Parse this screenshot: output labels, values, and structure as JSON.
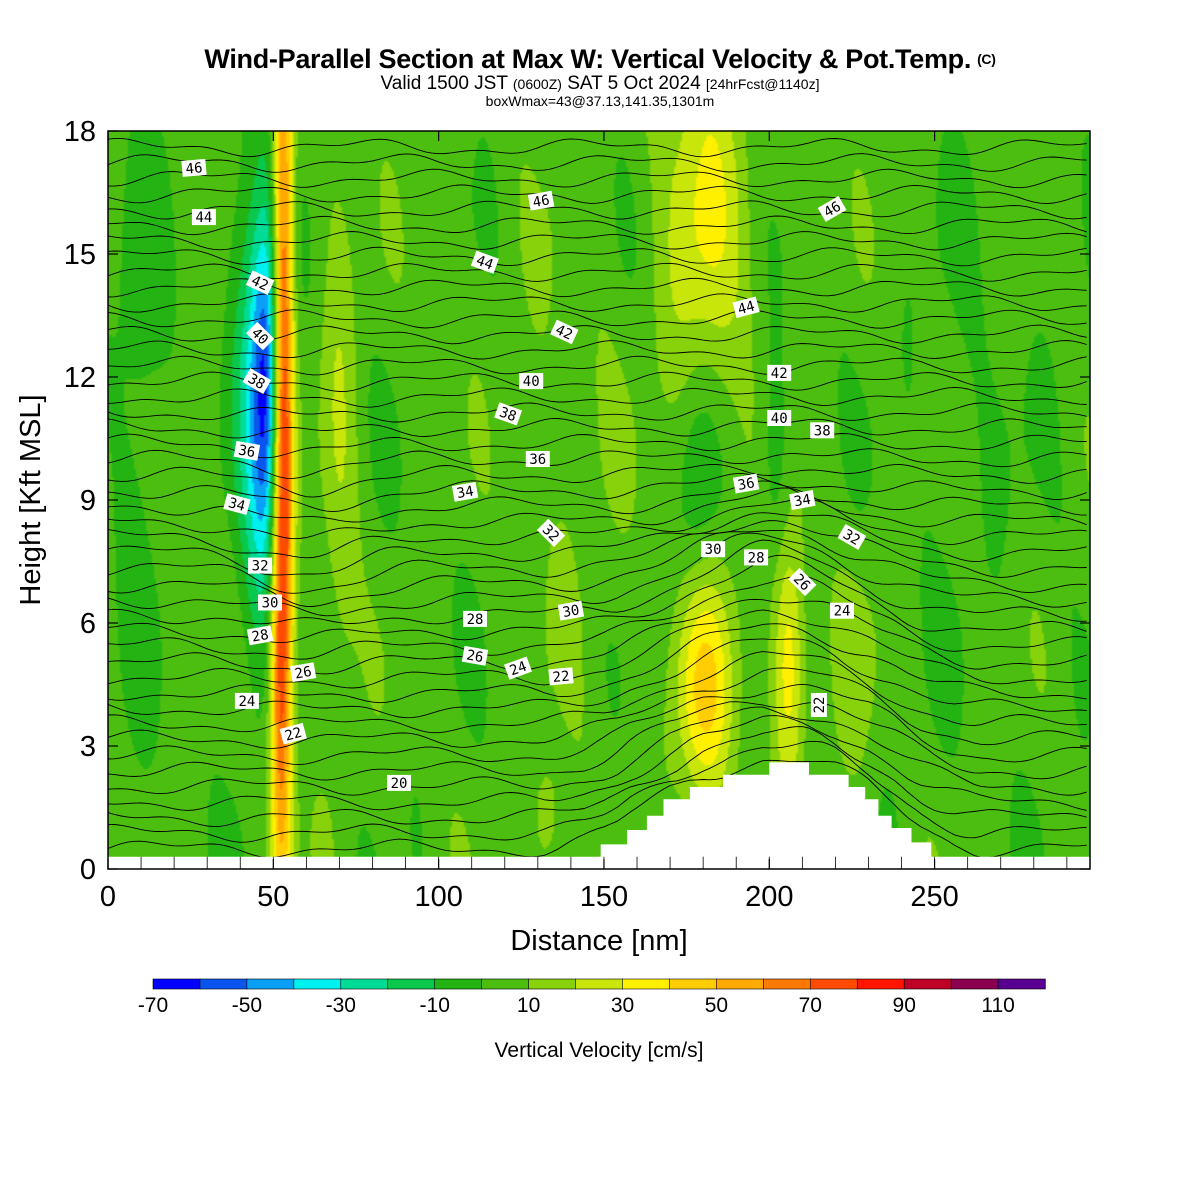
{
  "header": {
    "title": "Wind-Parallel Section at Max W: Vertical Velocity & Pot.Temp.",
    "title_mark": "(C)",
    "valid_prefix": "Valid 1500 JST",
    "valid_utc": "(0600Z)",
    "valid_date": "SAT 5 Oct 2024",
    "forecast": "[24hrFcst@1140z]",
    "box_info": "boxWmax=43@37.13,141.35,1301m"
  },
  "chart_data": {
    "type": "heatmap",
    "title": "Wind-Parallel Section at Max W: Vertical Velocity & Pot.Temp.",
    "xlabel": "Distance [nm]",
    "ylabel": "Height [Kft MSL]",
    "xlim": [
      0,
      297
    ],
    "ylim": [
      0,
      18
    ],
    "x_ticks": [
      0,
      50,
      100,
      150,
      200,
      250
    ],
    "y_ticks": [
      0,
      3,
      6,
      9,
      12,
      15,
      18
    ],
    "colorbar": {
      "title": "Vertical Velocity [cm/s]",
      "tick_labels": [
        "-70",
        "-50",
        "-30",
        "-10",
        "10",
        "30",
        "50",
        "70",
        "90",
        "110"
      ],
      "levels": [
        -70,
        -60,
        -50,
        -40,
        -30,
        -20,
        -10,
        0,
        10,
        20,
        30,
        40,
        50,
        60,
        70,
        80,
        90,
        100,
        110
      ],
      "colors": [
        "#0000ff",
        "#0a55ee",
        "#0aa0f5",
        "#00f0f0",
        "#00dc96",
        "#0ac84b",
        "#23b414",
        "#4bbe0f",
        "#87d20a",
        "#c8e60a",
        "#fff000",
        "#ffcd00",
        "#ffaa00",
        "#ff7800",
        "#ff4b00",
        "#ff1400",
        "#be0028",
        "#8c0050",
        "#5a0091"
      ]
    },
    "velocity_features": [
      {
        "x": 53,
        "y": 11,
        "sx": 2.2,
        "sy": 8.5,
        "value": 80
      },
      {
        "x": 51,
        "y": 4.2,
        "sx": 2,
        "sy": 3,
        "value": 25
      },
      {
        "x": 48,
        "y": 11.8,
        "sx": 3.2,
        "sy": 3,
        "value": -52
      },
      {
        "x": 44,
        "y": 11.5,
        "sx": 4.5,
        "sy": 4.5,
        "value": -25
      },
      {
        "x": 70,
        "y": 10.5,
        "sx": 4,
        "sy": 5,
        "value": 14
      },
      {
        "x": 180,
        "y": 16,
        "sx": 9,
        "sy": 4,
        "value": 26
      },
      {
        "x": 180,
        "y": 4.5,
        "sx": 6.5,
        "sy": 2.2,
        "value": 38
      },
      {
        "x": 206,
        "y": 5.2,
        "sx": 3.5,
        "sy": 2.3,
        "value": 34
      },
      {
        "x": 178,
        "y": 8.8,
        "sx": 5,
        "sy": 2.5,
        "value": -18
      },
      {
        "x": 202,
        "y": 9.8,
        "sx": 3,
        "sy": 2,
        "value": -12
      },
      {
        "x": 226,
        "y": 5,
        "sx": 5,
        "sy": 2,
        "value": 10
      },
      {
        "x": 133,
        "y": 1.2,
        "sx": 3,
        "sy": 1,
        "value": 14
      },
      {
        "x": 10,
        "y": 12,
        "sx": 5,
        "sy": 5,
        "value": -10
      },
      {
        "x": 260,
        "y": 11,
        "sx": 15,
        "sy": 5,
        "value": -3
      },
      {
        "x": 140,
        "y": 10,
        "sx": 12,
        "sy": 6,
        "value": 5
      }
    ],
    "theta_levels": [
      20,
      22,
      24,
      26,
      28,
      30,
      32,
      34,
      36,
      38,
      40,
      42,
      44,
      46
    ],
    "contour_labels": [
      {
        "text": "46",
        "x": 26,
        "y": 17.1,
        "angle": -5
      },
      {
        "text": "44",
        "x": 29,
        "y": 15.9,
        "angle": 0
      },
      {
        "text": "42",
        "x": 46,
        "y": 14.3,
        "angle": 25
      },
      {
        "text": "40",
        "x": 46,
        "y": 13.0,
        "angle": 45
      },
      {
        "text": "38",
        "x": 45,
        "y": 11.9,
        "angle": 30
      },
      {
        "text": "36",
        "x": 42,
        "y": 10.2,
        "angle": 10
      },
      {
        "text": "34",
        "x": 39,
        "y": 8.9,
        "angle": 15
      },
      {
        "text": "32",
        "x": 46,
        "y": 7.4,
        "angle": 0
      },
      {
        "text": "30",
        "x": 49,
        "y": 6.5,
        "angle": 0
      },
      {
        "text": "28",
        "x": 46,
        "y": 5.7,
        "angle": -10
      },
      {
        "text": "26",
        "x": 59,
        "y": 4.8,
        "angle": -10
      },
      {
        "text": "24",
        "x": 42,
        "y": 4.1,
        "angle": 0
      },
      {
        "text": "22",
        "x": 56,
        "y": 3.3,
        "angle": -15
      },
      {
        "text": "20",
        "x": 88,
        "y": 2.1,
        "angle": 0
      },
      {
        "text": "46",
        "x": 131,
        "y": 16.3,
        "angle": -10
      },
      {
        "text": "44",
        "x": 114,
        "y": 14.8,
        "angle": 20
      },
      {
        "text": "42",
        "x": 138,
        "y": 13.1,
        "angle": 25
      },
      {
        "text": "40",
        "x": 128,
        "y": 11.9,
        "angle": 0
      },
      {
        "text": "38",
        "x": 121,
        "y": 11.1,
        "angle": 20
      },
      {
        "text": "36",
        "x": 130,
        "y": 10.0,
        "angle": 0
      },
      {
        "text": "34",
        "x": 108,
        "y": 9.2,
        "angle": -10
      },
      {
        "text": "32",
        "x": 134,
        "y": 8.2,
        "angle": 45
      },
      {
        "text": "30",
        "x": 140,
        "y": 6.3,
        "angle": -10
      },
      {
        "text": "28",
        "x": 111,
        "y": 6.1,
        "angle": 0
      },
      {
        "text": "26",
        "x": 111,
        "y": 5.2,
        "angle": 10
      },
      {
        "text": "24",
        "x": 124,
        "y": 4.9,
        "angle": -20
      },
      {
        "text": "22",
        "x": 137,
        "y": 4.7,
        "angle": -5
      },
      {
        "text": "46",
        "x": 219,
        "y": 16.1,
        "angle": -30
      },
      {
        "text": "44",
        "x": 193,
        "y": 13.7,
        "angle": -15
      },
      {
        "text": "42",
        "x": 203,
        "y": 12.1,
        "angle": 0
      },
      {
        "text": "40",
        "x": 203,
        "y": 11.0,
        "angle": 0
      },
      {
        "text": "38",
        "x": 216,
        "y": 10.7,
        "angle": 0
      },
      {
        "text": "36",
        "x": 193,
        "y": 9.4,
        "angle": -10
      },
      {
        "text": "34",
        "x": 210,
        "y": 9.0,
        "angle": -10
      },
      {
        "text": "32",
        "x": 225,
        "y": 8.1,
        "angle": 30
      },
      {
        "text": "30",
        "x": 183,
        "y": 7.8,
        "angle": 0
      },
      {
        "text": "28",
        "x": 196,
        "y": 7.6,
        "angle": 0
      },
      {
        "text": "26",
        "x": 210,
        "y": 7.0,
        "angle": 45
      },
      {
        "text": "24",
        "x": 222,
        "y": 6.3,
        "angle": 0
      },
      {
        "text": "22",
        "x": 215,
        "y": 4.0,
        "angle": -90
      }
    ],
    "terrain_steps": [
      {
        "x0": 145,
        "x1": 149,
        "h": 0.3
      },
      {
        "x0": 149,
        "x1": 157,
        "h": 0.6
      },
      {
        "x0": 157,
        "x1": 163,
        "h": 0.95
      },
      {
        "x0": 163,
        "x1": 168,
        "h": 1.3
      },
      {
        "x0": 168,
        "x1": 176,
        "h": 1.7
      },
      {
        "x0": 176,
        "x1": 186,
        "h": 2.0
      },
      {
        "x0": 186,
        "x1": 200,
        "h": 2.3
      },
      {
        "x0": 200,
        "x1": 212,
        "h": 2.6
      },
      {
        "x0": 212,
        "x1": 224,
        "h": 2.3
      },
      {
        "x0": 224,
        "x1": 229,
        "h": 2.0
      },
      {
        "x0": 229,
        "x1": 233,
        "h": 1.7
      },
      {
        "x0": 233,
        "x1": 237,
        "h": 1.3
      },
      {
        "x0": 237,
        "x1": 243,
        "h": 1.0
      },
      {
        "x0": 243,
        "x1": 249,
        "h": 0.65
      },
      {
        "x0": 249,
        "x1": 252,
        "h": 0.3
      }
    ],
    "surface_height": 0.3
  }
}
